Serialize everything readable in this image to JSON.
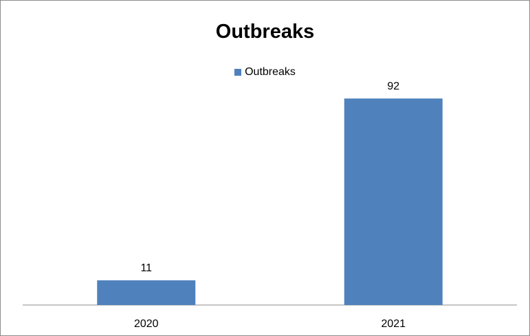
{
  "chart_data": {
    "type": "bar",
    "title": "Outbreaks",
    "categories": [
      "2020",
      "2021"
    ],
    "series": [
      {
        "name": "Outbreaks",
        "values": [
          11,
          92
        ]
      }
    ],
    "data_labels": [
      "11",
      "92"
    ],
    "ylim": [
      0,
      100
    ],
    "grid": false,
    "legend_position": "top",
    "colors": {
      "bar": "#4f81bd",
      "axis": "#8c8c8c",
      "text": "#000000"
    }
  }
}
